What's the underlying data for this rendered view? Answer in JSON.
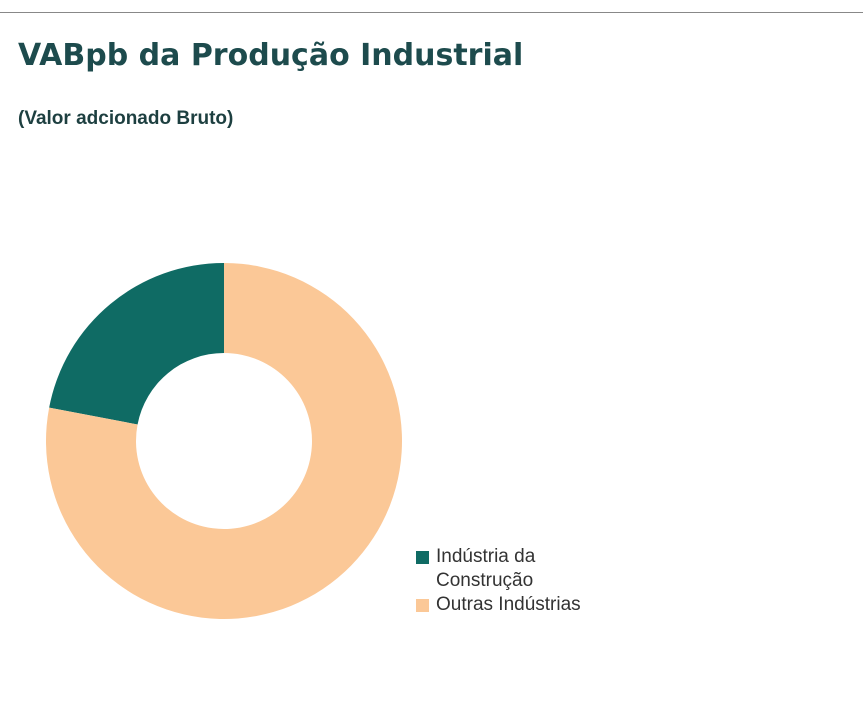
{
  "chart_data": {
    "type": "donut",
    "title": "VABpb da Produção Industrial",
    "subtitle": "(Valor adcionado Bruto)",
    "categories": [
      "Indústria da Construção",
      "Outras Indústrias"
    ],
    "values": [
      22,
      78
    ],
    "colors": [
      "#0f6b64",
      "#fbc897"
    ],
    "legend": "right"
  }
}
